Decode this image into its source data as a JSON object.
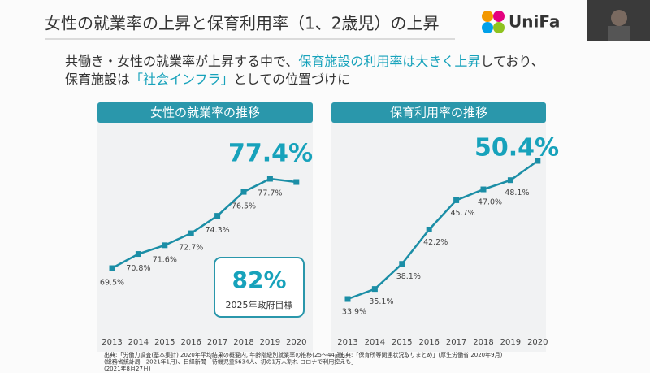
{
  "slide": {
    "title": "女性の就業率の上昇と保育利用率（1、2歳児）の上昇",
    "logo": "UniFa",
    "subtitle": [
      [
        {
          "text": "共働き・女性の就業率が上昇する中で、",
          "hl": false
        },
        {
          "text": "保育施設の利用率は大きく上昇",
          "hl": true
        },
        {
          "text": "しており、",
          "hl": false
        }
      ],
      [
        {
          "text": "保育施設は",
          "hl": false
        },
        {
          "text": "「社会インフラ」",
          "hl": true
        },
        {
          "text": "としての位置づけに",
          "hl": false
        }
      ]
    ]
  },
  "chart_data": [
    {
      "type": "line",
      "title": "女性の就業率の推移",
      "categories": [
        "2013",
        "2014",
        "2015",
        "2016",
        "2017",
        "2018",
        "2019",
        "2020"
      ],
      "values": [
        69.5,
        70.8,
        71.6,
        72.7,
        74.3,
        76.5,
        77.7,
        77.4
      ],
      "value_labels": [
        "69.5%",
        "70.8%",
        "71.6%",
        "72.7%",
        "74.3%",
        "76.5%",
        "77.7%",
        "77.4%"
      ],
      "color": "#1b8ea6",
      "annotation": {
        "value": "82%",
        "label": "2025年政府目標"
      },
      "source": [
        "出典:「労働力調査(基本集計) 2020年平均結果の概要内, 年齢階級別就業率の推移(25～44歳)」",
        "(総務省統計局　2021年1月)、日経新聞「待機児童5634人、初の1万人割れ コロナで利用控えも」",
        "(2021年8月27日)"
      ]
    },
    {
      "type": "line",
      "title": "保育利用率の推移",
      "categories": [
        "2013",
        "2014",
        "2015",
        "2016",
        "2017",
        "2018",
        "2019",
        "2020"
      ],
      "values": [
        33.9,
        35.1,
        38.1,
        42.2,
        45.7,
        47.0,
        48.1,
        50.4
      ],
      "value_labels": [
        "33.9%",
        "35.1%",
        "38.1%",
        "42.2%",
        "45.7%",
        "47.0%",
        "48.1%",
        "50.4%"
      ],
      "color": "#1b8ea6",
      "source": [
        "出典:「保育所等関連状況取りまとめ」(厚生労働省 2020年9月)"
      ]
    }
  ]
}
